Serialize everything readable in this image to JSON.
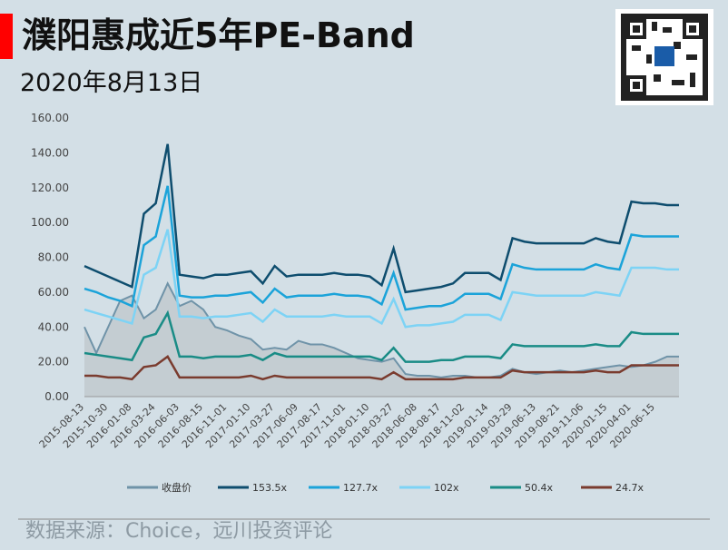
{
  "title": "濮阳惠成近5年PE-Band",
  "subtitle": "2020年8月13日",
  "source": "数据来源：Choice，远川投资评论",
  "chart_data": {
    "type": "line",
    "categories": [
      "2015-08-13",
      null,
      "2015-10-30",
      null,
      "2016-01-08",
      null,
      "2016-03-24",
      null,
      "2016-06-03",
      null,
      "2016-08-15",
      null,
      "2016-11-01",
      null,
      "2017-01-10",
      null,
      "2017-03-27",
      null,
      "2017-06-09",
      null,
      "2017-08-17",
      null,
      "2017-11-01",
      null,
      "2018-01-10",
      null,
      "2018-03-27",
      null,
      "2018-06-08",
      null,
      "2018-08-17",
      null,
      "2018-11-02",
      null,
      "2019-01-14",
      null,
      "2019-03-29",
      null,
      "2019-06-13",
      null,
      "2019-08-21",
      null,
      "2019-11-06",
      null,
      "2020-01-15",
      null,
      "2020-04-01",
      null,
      "2020-06-15",
      null,
      null
    ],
    "ylim": [
      0,
      160
    ],
    "yticks": [
      {
        "value": 0,
        "label": "0.00"
      },
      {
        "value": 20,
        "label": "20.00"
      },
      {
        "value": 40,
        "label": "40.00"
      },
      {
        "value": 60,
        "label": "60.00"
      },
      {
        "value": 80,
        "label": "80.00"
      },
      {
        "value": 100,
        "label": "100.00"
      },
      {
        "value": 120,
        "label": "120.00"
      },
      {
        "value": 140,
        "label": "140.00"
      },
      {
        "value": 160,
        "label": "160.00"
      }
    ],
    "series": [
      {
        "name": "收盘价",
        "color": "#6f93a8",
        "fill": "#c4cdd2",
        "values": [
          40,
          25,
          40,
          55,
          58,
          45,
          50,
          65,
          52,
          55,
          50,
          40,
          38,
          35,
          33,
          27,
          28,
          27,
          32,
          30,
          30,
          28,
          25,
          22,
          21,
          20,
          22,
          13,
          12,
          12,
          11,
          12,
          12,
          11,
          11,
          12,
          16,
          14,
          13,
          14,
          15,
          14,
          15,
          16,
          17,
          18,
          17,
          18,
          20,
          23,
          23
        ]
      },
      {
        "name": "153.5x",
        "color": "#0e4d6e",
        "values": [
          75,
          72,
          69,
          66,
          63,
          105,
          111,
          145,
          70,
          69,
          68,
          70,
          70,
          71,
          72,
          65,
          75,
          69,
          70,
          70,
          70,
          71,
          70,
          70,
          69,
          64,
          85,
          60,
          61,
          62,
          63,
          65,
          71,
          71,
          71,
          67,
          91,
          89,
          88,
          88,
          88,
          88,
          88,
          91,
          89,
          88,
          112,
          111,
          111,
          110,
          110
        ]
      },
      {
        "name": "127.7x",
        "color": "#1ba3d9",
        "values": [
          62,
          60,
          57,
          55,
          52,
          87,
          92,
          121,
          58,
          57,
          57,
          58,
          58,
          59,
          60,
          54,
          62,
          57,
          58,
          58,
          58,
          59,
          58,
          58,
          57,
          53,
          71,
          50,
          51,
          52,
          52,
          54,
          59,
          59,
          59,
          56,
          76,
          74,
          73,
          73,
          73,
          73,
          73,
          76,
          74,
          73,
          93,
          92,
          92,
          92,
          92
        ]
      },
      {
        "name": "102x",
        "color": "#7dd3f5",
        "values": [
          50,
          48,
          46,
          44,
          42,
          70,
          74,
          96,
          46,
          46,
          45,
          46,
          46,
          47,
          48,
          43,
          50,
          46,
          46,
          46,
          46,
          47,
          46,
          46,
          46,
          42,
          56,
          40,
          41,
          41,
          42,
          43,
          47,
          47,
          47,
          44,
          60,
          59,
          58,
          58,
          58,
          58,
          58,
          60,
          59,
          58,
          74,
          74,
          74,
          73,
          73
        ]
      },
      {
        "name": "50.4x",
        "color": "#1a8c86",
        "values": [
          25,
          24,
          23,
          22,
          21,
          34,
          36,
          48,
          23,
          23,
          22,
          23,
          23,
          23,
          24,
          21,
          25,
          23,
          23,
          23,
          23,
          23,
          23,
          23,
          23,
          21,
          28,
          20,
          20,
          20,
          21,
          21,
          23,
          23,
          23,
          22,
          30,
          29,
          29,
          29,
          29,
          29,
          29,
          30,
          29,
          29,
          37,
          36,
          36,
          36,
          36
        ]
      },
      {
        "name": "24.7x",
        "color": "#7a3b2e",
        "values": [
          12,
          12,
          11,
          11,
          10,
          17,
          18,
          23,
          11,
          11,
          11,
          11,
          11,
          11,
          12,
          10,
          12,
          11,
          11,
          11,
          11,
          11,
          11,
          11,
          11,
          10,
          14,
          10,
          10,
          10,
          10,
          10,
          11,
          11,
          11,
          11,
          15,
          14,
          14,
          14,
          14,
          14,
          14,
          15,
          14,
          14,
          18,
          18,
          18,
          18,
          18
        ]
      }
    ]
  }
}
